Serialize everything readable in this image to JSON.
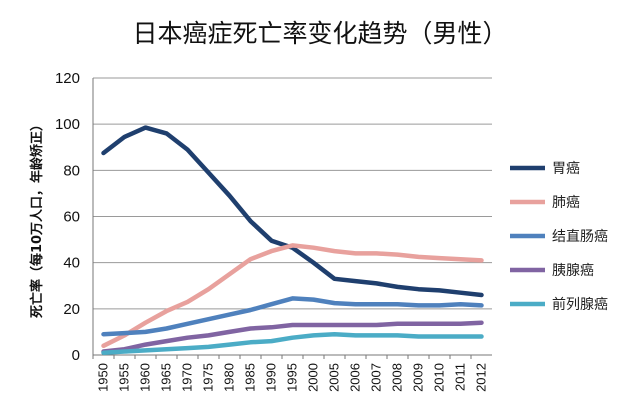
{
  "chart_data": {
    "type": "line",
    "title": "日本癌症死亡率变化趋势（男性）",
    "xlabel": "",
    "ylabel": "死亡率（每10万人口，年龄矫正）",
    "ylim": [
      0,
      120
    ],
    "yticks": [
      0,
      20,
      40,
      60,
      80,
      100,
      120
    ],
    "grid": true,
    "legend_position": "right",
    "categories": [
      "1950",
      "1955",
      "1960",
      "1965",
      "1970",
      "1975",
      "1980",
      "1985",
      "1990",
      "1995",
      "2000",
      "2005",
      "2006",
      "2007",
      "2008",
      "2009",
      "2010",
      "2011",
      "2012"
    ],
    "series": [
      {
        "name": "胃癌",
        "color": "#1f3f6e",
        "values": [
          87.5,
          94.5,
          98.5,
          96,
          89,
          79,
          69,
          58,
          49.5,
          46.5,
          40,
          33,
          32,
          31,
          29.5,
          28.5,
          28,
          27,
          26
        ]
      },
      {
        "name": "肺癌",
        "color": "#e8a19d",
        "values": [
          4,
          8.5,
          14,
          19,
          23,
          28.5,
          35,
          41.5,
          45,
          47.5,
          46.5,
          45,
          44,
          44,
          43.5,
          42.5,
          42,
          41.5,
          41
        ]
      },
      {
        "name": "结直肠癌",
        "color": "#4f81bd",
        "values": [
          9,
          9.5,
          10,
          11.5,
          13.5,
          15.5,
          17.5,
          19.5,
          22,
          24.5,
          24,
          22.5,
          22,
          22,
          22,
          21.5,
          21.5,
          22,
          21.5
        ]
      },
      {
        "name": "胰腺癌",
        "color": "#8064a2",
        "values": [
          1.5,
          2.5,
          4.5,
          6,
          7.5,
          8.5,
          10,
          11.5,
          12,
          13,
          13,
          13,
          13,
          13,
          13.5,
          13.5,
          13.5,
          13.5,
          14
        ]
      },
      {
        "name": "前列腺癌",
        "color": "#4bacc6",
        "values": [
          1,
          1.5,
          2,
          2.5,
          3,
          3.5,
          4.5,
          5.5,
          6,
          7.5,
          8.5,
          9,
          8.5,
          8.5,
          8.5,
          8,
          8,
          8,
          8
        ]
      }
    ]
  }
}
